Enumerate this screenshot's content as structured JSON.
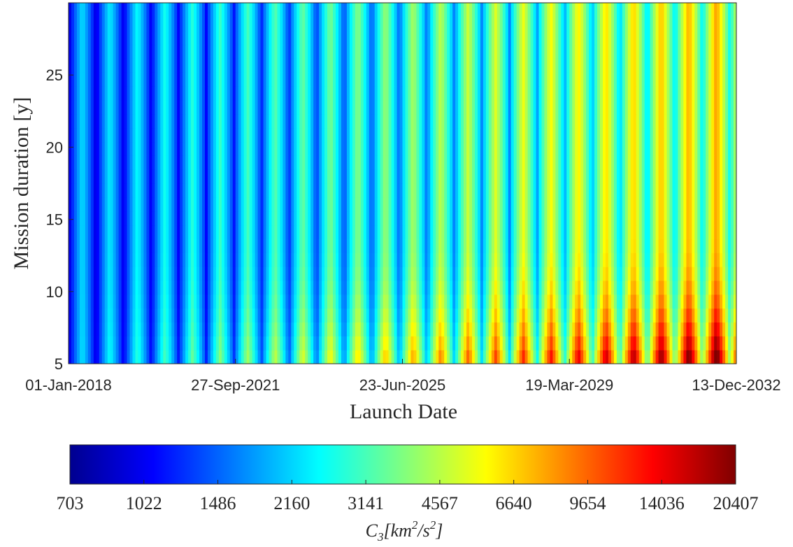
{
  "chart_data": {
    "type": "heatmap",
    "xlabel": "Launch Date",
    "ylabel": "Mission duration [y]",
    "x_tick_labels": [
      "01-Jan-2018",
      "27-Sep-2021",
      "23-Jun-2025",
      "19-Mar-2029",
      "13-Dec-2032"
    ],
    "x_range": [
      "01-Jan-2018",
      "13-Dec-2032"
    ],
    "y_ticks": [
      5,
      10,
      15,
      20,
      25
    ],
    "ylim": [
      5,
      30
    ],
    "colorbar": {
      "label_parts": [
        "C",
        "3",
        "[km",
        "2",
        "/s",
        "2",
        "]"
      ],
      "scale": "log",
      "range": [
        703,
        20407
      ],
      "tick_labels": [
        "703",
        "1022",
        "1486",
        "2160",
        "3141",
        "4567",
        "6640",
        "9654",
        "14036",
        "20407"
      ],
      "colormap": "jet",
      "stops": [
        "#00008f",
        "#0000ff",
        "#00ffff",
        "#ffff00",
        "#ff0000",
        "#800000"
      ]
    },
    "value_unit": "km^2/s^2",
    "minimum_band_count": 24,
    "band_period_years": 0.617,
    "note_values": "C3 minima (dark blue bands) recur about every synodic period; values rise toward later launch dates and short durations"
  }
}
